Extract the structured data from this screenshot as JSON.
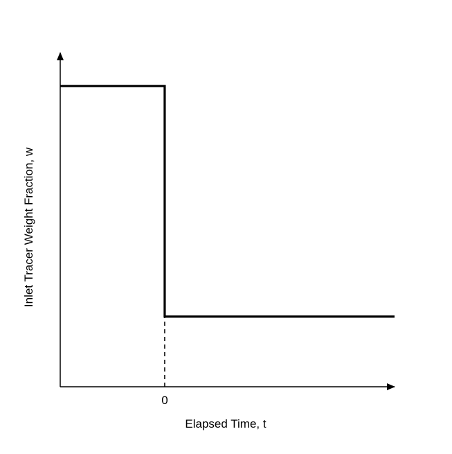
{
  "chart_data": {
    "type": "line",
    "title": "",
    "xlabel": "Elapsed Time, t",
    "ylabel": "Inlet Tracer Weight Fraction, w",
    "x_ticks": [
      {
        "value": 0,
        "label": "0"
      }
    ],
    "xlim": [
      -1,
      2.2
    ],
    "ylim": [
      0,
      1
    ],
    "grid": false,
    "legend": "none",
    "series": [
      {
        "points": [
          {
            "x": -1,
            "y": 0.9
          },
          {
            "x": 0,
            "y": 0.9
          },
          {
            "x": 0,
            "y": 0.21
          },
          {
            "x": 2.2,
            "y": 0.21
          }
        ],
        "color": "#000000"
      }
    ],
    "reference_lines": [
      {
        "x": 0,
        "y_from": 0,
        "y_to": 0.21,
        "style": "dashed",
        "color": "#000000"
      }
    ]
  }
}
